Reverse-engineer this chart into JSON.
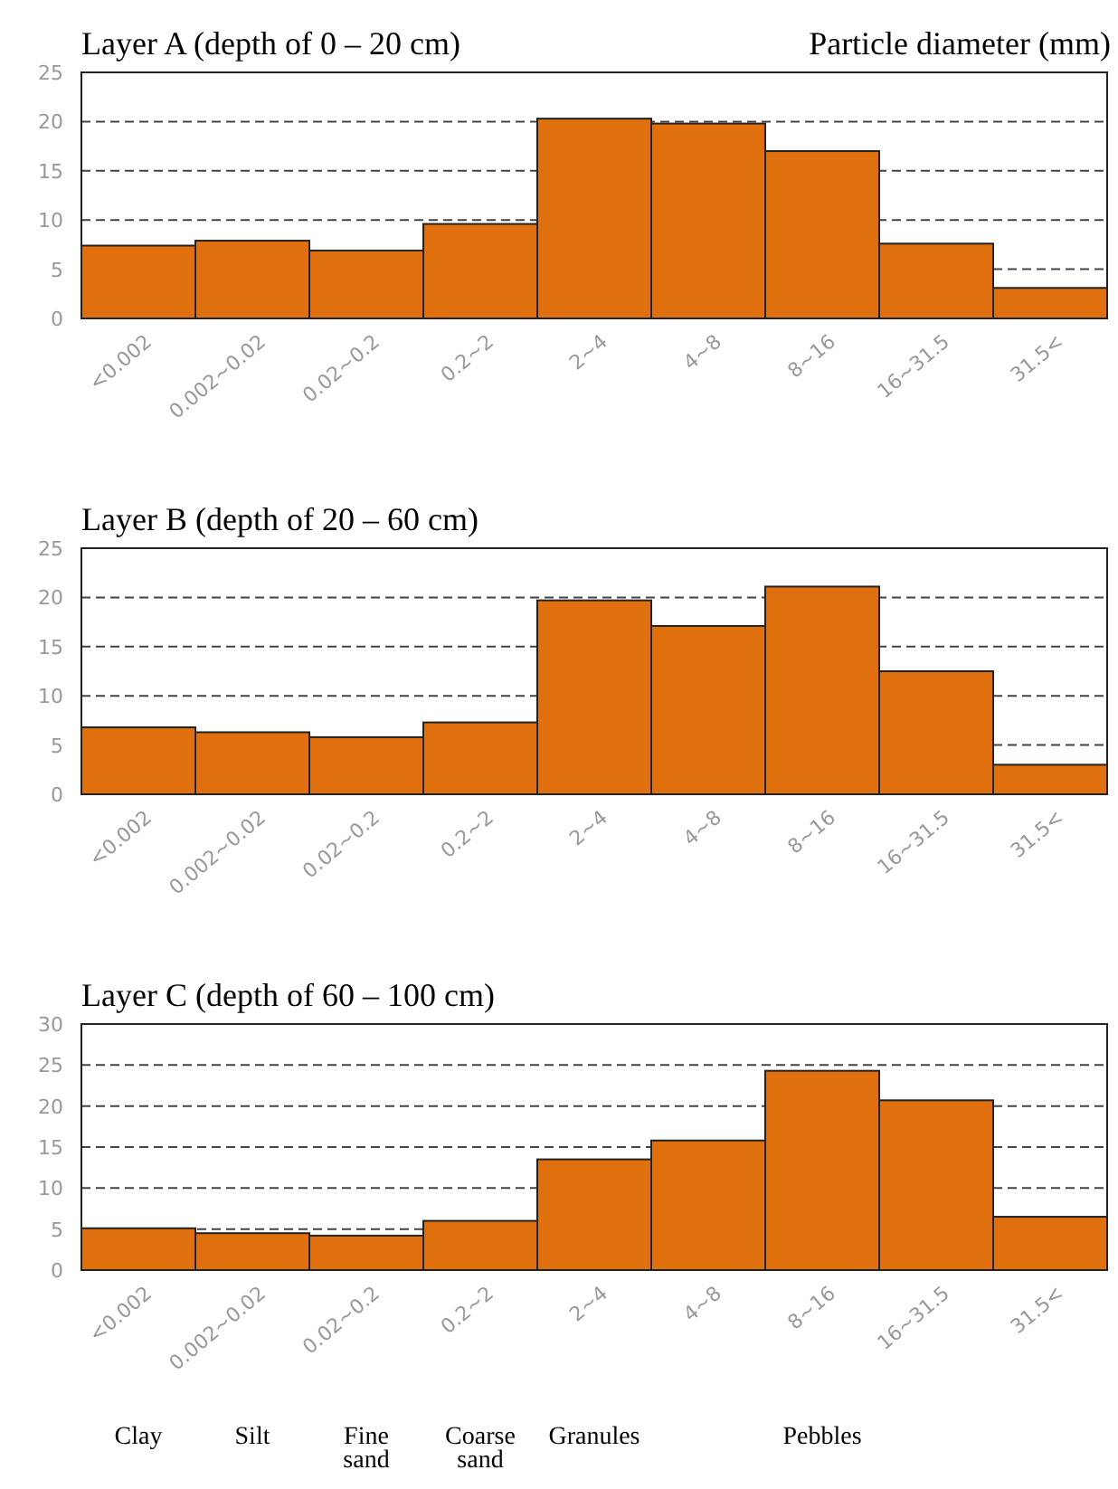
{
  "chart_data": [
    {
      "type": "bar",
      "title": "Layer A  (depth of 0 – 20 cm)",
      "annotations": [
        "Particle diameter (mm)"
      ],
      "categories": [
        "<0.002",
        "0.002~0.02",
        "0.02~0.2",
        "0.2~2",
        "2~4",
        "4~8",
        "8~16",
        "16~31.5",
        "31.5<"
      ],
      "values": [
        7.4,
        7.9,
        6.9,
        9.6,
        20.3,
        19.8,
        17.0,
        7.6,
        3.1
      ],
      "color": "#e0700e",
      "ylim": [
        0,
        25
      ],
      "yticks": [
        0,
        5,
        10,
        15,
        20,
        25
      ],
      "grid": "y"
    },
    {
      "type": "bar",
      "title": "Layer B  (depth of 20 – 60 cm)",
      "categories": [
        "<0.002",
        "0.002~0.02",
        "0.02~0.2",
        "0.2~2",
        "2~4",
        "4~8",
        "8~16",
        "16~31.5",
        "31.5<"
      ],
      "values": [
        6.8,
        6.3,
        5.8,
        7.3,
        19.7,
        17.1,
        21.1,
        12.5,
        3.0
      ],
      "color": "#e0700e",
      "ylim": [
        0,
        25
      ],
      "yticks": [
        0,
        5,
        10,
        15,
        20,
        25
      ],
      "grid": "y"
    },
    {
      "type": "bar",
      "title": "Layer C  (depth of 60 – 100 cm)",
      "annotations": [
        "Clay",
        "Silt",
        "Fine sand",
        "Coarse sand",
        "Granules",
        "Pebbles"
      ],
      "categories": [
        "<0.002",
        "0.002~0.02",
        "0.02~0.2",
        "0.2~2",
        "2~4",
        "4~8",
        "8~16",
        "16~31.5",
        "31.5<"
      ],
      "values": [
        5.1,
        4.5,
        4.2,
        6.0,
        13.5,
        15.8,
        24.3,
        20.7,
        6.5
      ],
      "color": "#e0700e",
      "ylim": [
        0,
        30
      ],
      "yticks": [
        0,
        5,
        10,
        15,
        20,
        25,
        30
      ],
      "grid": "y"
    }
  ]
}
